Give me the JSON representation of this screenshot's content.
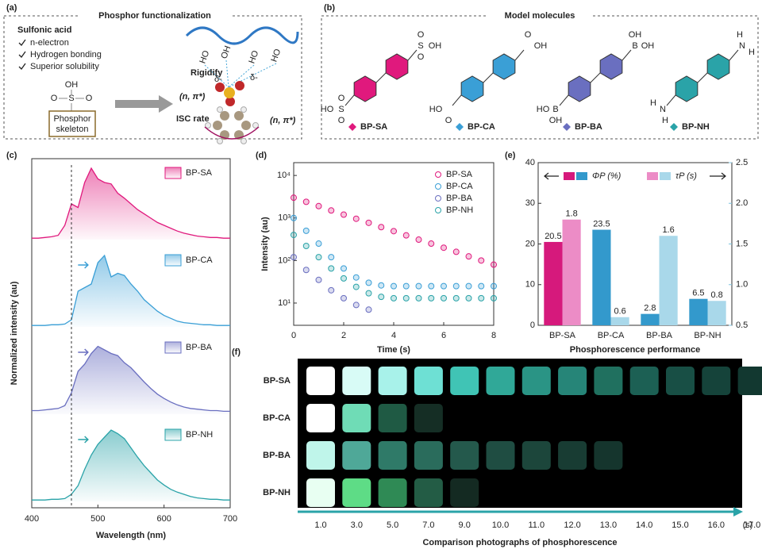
{
  "panel_a": {
    "label": "(a)",
    "title": "Phosphor functionalization",
    "group": "Sulfonic acid",
    "features": [
      "n-electron",
      "Hydrogen bonding",
      "Superior solubility"
    ],
    "skeleton_atoms": [
      "OH",
      "O",
      "S",
      "O"
    ],
    "skeleton": [
      "Phosphor",
      "skeleton"
    ],
    "rigidify": "Rigidify",
    "isc": "ISC rate",
    "transition": "(n, π*)",
    "polymer_atoms": [
      "HO",
      "OH",
      "HO",
      "HO"
    ],
    "delta": "δ-"
  },
  "panel_b": {
    "label": "(b)",
    "title": "Model molecules",
    "molecules": [
      {
        "name": "BP-SA",
        "color": "#e0197d",
        "top": [
          "O",
          "S",
          "OH",
          "O"
        ],
        "bottom": [
          "O",
          "S",
          "HO",
          "O"
        ]
      },
      {
        "name": "BP-CA",
        "color": "#3a9fd6",
        "top": [
          "O",
          "OH"
        ],
        "bottom": [
          "O",
          "HO"
        ]
      },
      {
        "name": "BP-BA",
        "color": "#6a6fc0",
        "top": [
          "OH",
          "B",
          "OH"
        ],
        "bottom": [
          "OH",
          "B",
          "HO"
        ]
      },
      {
        "name": "BP-NH",
        "color": "#2aa3a8",
        "top": [
          "H",
          "N",
          "H"
        ],
        "bottom": [
          "H",
          "N",
          "H"
        ]
      }
    ]
  },
  "chart_data": [
    {
      "type": "line",
      "label": "(c)",
      "xlabel": "Wavelength (nm)",
      "ylabel": "Normalized intensity (au)",
      "xlim": [
        400,
        700
      ],
      "xticks": [
        400,
        500,
        600,
        700
      ],
      "vline": 460,
      "x": [
        400,
        410,
        420,
        430,
        440,
        450,
        460,
        470,
        480,
        490,
        500,
        510,
        520,
        530,
        540,
        550,
        560,
        570,
        580,
        590,
        600,
        610,
        620,
        630,
        640,
        650,
        660,
        670,
        680,
        690,
        700
      ],
      "series": [
        {
          "name": "BP-SA",
          "color": "#e0197d",
          "values": [
            0.02,
            0.02,
            0.03,
            0.04,
            0.06,
            0.2,
            0.5,
            0.45,
            0.8,
            1.0,
            0.85,
            0.8,
            0.78,
            0.65,
            0.58,
            0.5,
            0.42,
            0.36,
            0.3,
            0.24,
            0.2,
            0.16,
            0.12,
            0.09,
            0.07,
            0.05,
            0.04,
            0.03,
            0.03,
            0.02,
            0.02
          ]
        },
        {
          "name": "BP-CA",
          "color": "#3a9fd6",
          "values": [
            0.02,
            0.02,
            0.02,
            0.03,
            0.03,
            0.04,
            0.1,
            0.5,
            0.55,
            0.6,
            0.9,
            1.0,
            0.7,
            0.75,
            0.72,
            0.6,
            0.5,
            0.38,
            0.3,
            0.22,
            0.16,
            0.12,
            0.08,
            0.06,
            0.05,
            0.04,
            0.03,
            0.03,
            0.02,
            0.02,
            0.02
          ]
        },
        {
          "name": "BP-BA",
          "color": "#6a6fc0",
          "values": [
            0.05,
            0.05,
            0.06,
            0.07,
            0.08,
            0.12,
            0.3,
            0.6,
            0.7,
            0.85,
            0.95,
            0.9,
            0.85,
            0.82,
            0.72,
            0.65,
            0.55,
            0.45,
            0.36,
            0.28,
            0.22,
            0.17,
            0.13,
            0.1,
            0.08,
            0.07,
            0.06,
            0.05,
            0.05,
            0.04,
            0.04
          ]
        },
        {
          "name": "BP-NH",
          "color": "#2aa3a8",
          "values": [
            0.02,
            0.02,
            0.02,
            0.03,
            0.03,
            0.04,
            0.1,
            0.22,
            0.45,
            0.65,
            0.8,
            0.9,
            1.0,
            0.95,
            0.88,
            0.75,
            0.62,
            0.5,
            0.4,
            0.3,
            0.23,
            0.17,
            0.13,
            0.1,
            0.07,
            0.05,
            0.04,
            0.03,
            0.03,
            0.02,
            0.02
          ]
        }
      ]
    },
    {
      "type": "scatter",
      "label": "(d)",
      "xlabel": "Time (s)",
      "ylabel": "Intensity (au)",
      "log_y": true,
      "xlim": [
        0,
        8
      ],
      "xticks": [
        0,
        2,
        4,
        6,
        8
      ],
      "ylim": [
        3,
        20000
      ],
      "yticks": [
        {
          "value": 10,
          "label": "10¹"
        },
        {
          "value": 100,
          "label": "10²"
        },
        {
          "value": 1000,
          "label": "10³"
        },
        {
          "value": 10000,
          "label": "10⁴"
        }
      ],
      "x": [
        0,
        0.5,
        1,
        1.5,
        2,
        2.5,
        3,
        3.5,
        4,
        4.5,
        5,
        5.5,
        6,
        6.5,
        7,
        7.5,
        8
      ],
      "series": [
        {
          "name": "BP-SA",
          "color": "#e0197d",
          "values": [
            3000,
            2400,
            1900,
            1500,
            1200,
            960,
            770,
            610,
            490,
            390,
            310,
            250,
            200,
            160,
            125,
            100,
            80
          ]
        },
        {
          "name": "BP-CA",
          "color": "#3a9fd6",
          "values": [
            1000,
            500,
            250,
            120,
            65,
            40,
            30,
            26,
            25,
            25,
            25,
            25,
            25,
            25,
            25,
            25,
            25
          ]
        },
        {
          "name": "BP-BA",
          "color": "#6a6fc0",
          "values": [
            120,
            60,
            35,
            20,
            13,
            9,
            7,
            null,
            null,
            null,
            null,
            null,
            null,
            null,
            null,
            null,
            null
          ]
        },
        {
          "name": "BP-NH",
          "color": "#2aa3a8",
          "values": [
            400,
            220,
            120,
            65,
            38,
            24,
            17,
            14,
            13,
            13,
            13,
            13,
            13,
            13,
            13,
            13,
            13
          ]
        }
      ]
    },
    {
      "type": "bar",
      "label": "(e)",
      "xlabel": "Phosphorescence performance",
      "categories": [
        "BP-SA",
        "BP-CA",
        "BP-BA",
        "BP-NH"
      ],
      "ylim": [
        0,
        40
      ],
      "yticks": [
        0,
        10,
        20,
        30,
        40
      ],
      "y2lim": [
        0.5,
        2.5
      ],
      "y2ticks": [
        0.5,
        {
          "value": 1,
          "label": "1.0"
        },
        1.5,
        {
          "value": 2,
          "label": "2.0"
        },
        2.5
      ],
      "series": [
        {
          "name": "ΦP (%)",
          "colors": [
            "#d6197c",
            "#3399cc",
            "#3399cc",
            "#3399cc"
          ],
          "values": [
            20.5,
            23.5,
            2.8,
            6.5
          ]
        },
        {
          "name": "τP (s)",
          "axis": "y2",
          "colors": [
            "#ec8cc6",
            "#a9d8ea",
            "#a9d8ea",
            "#a9d8ea"
          ],
          "values": [
            1.8,
            0.6,
            1.6,
            0.8
          ]
        }
      ]
    }
  ],
  "panel_f": {
    "label": "(f)",
    "xlabel": "Comparison photographs of phosphorescence",
    "unit": "(s)",
    "times": [
      "1.0",
      "3.0",
      "5.0",
      "7.0",
      "9.0",
      "10.0",
      "11.0",
      "12.0",
      "13.0",
      "14.0",
      "15.0",
      "16.0",
      "17.0"
    ],
    "rows": [
      {
        "name": "BP-SA",
        "color": "#e0197d",
        "cells": [
          "#ffffff",
          "#d8fbf6",
          "#a8f2ea",
          "#6ee0d4",
          "#40c4b5",
          "#30a898",
          "#2a9485",
          "#268578",
          "#20705f",
          "#1c6054",
          "#184f45",
          "#15433a",
          "#123830"
        ]
      },
      {
        "name": "BP-CA",
        "color": "#3a9fd6",
        "cells": [
          "#ffffff",
          "#6fdcb6",
          "#1f5a44",
          "#152e25"
        ]
      },
      {
        "name": "BP-BA",
        "color": "#6a6fc0",
        "cells": [
          "#bff5ea",
          "#4fa898",
          "#2f7a68",
          "#2a6c5c",
          "#24594c",
          "#1f4d42",
          "#1c463b",
          "#183c33",
          "#15352d"
        ]
      },
      {
        "name": "BP-NH",
        "color": "#2aa3a8",
        "cells": [
          "#e8fff2",
          "#5edc86",
          "#2f8a55",
          "#235c45",
          "#142a22"
        ]
      }
    ]
  }
}
